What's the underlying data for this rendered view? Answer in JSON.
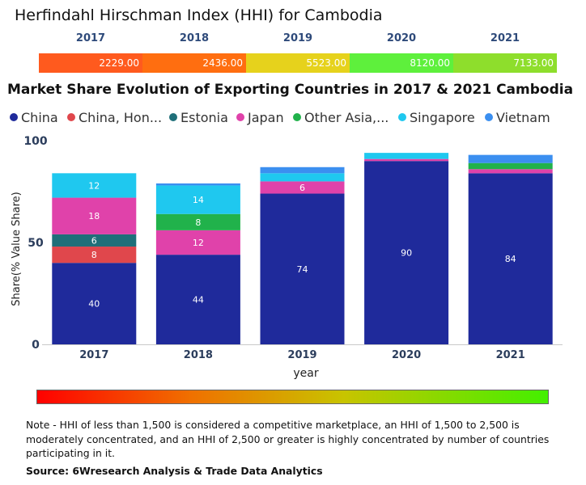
{
  "hhi": {
    "title": "Herfindahl Hirschman Index (HHI) for Cambodia",
    "entries": [
      {
        "year": "2017",
        "value": "2229.00",
        "color": "#ff5a1e"
      },
      {
        "year": "2018",
        "value": "2436.00",
        "color": "#ff6e10"
      },
      {
        "year": "2019",
        "value": "5523.00",
        "color": "#e6d21c"
      },
      {
        "year": "2020",
        "value": "8120.00",
        "color": "#5ef03c"
      },
      {
        "year": "2021",
        "value": "7133.00",
        "color": "#8ede2c"
      }
    ]
  },
  "chart_title": "Market Share Evolution of Exporting Countries in 2017 & 2021 Cambodia",
  "legend": [
    {
      "label": "China",
      "color": "#1f2a9b"
    },
    {
      "label": "China, Hon...",
      "color": "#e0474c"
    },
    {
      "label": "Estonia",
      "color": "#1f6f79"
    },
    {
      "label": "Japan",
      "color": "#e042aa"
    },
    {
      "label": "Other Asia,...",
      "color": "#21b24b"
    },
    {
      "label": "Singapore",
      "color": "#1fc8ef"
    },
    {
      "label": "Vietnam",
      "color": "#3b8ff0"
    }
  ],
  "chart_data": {
    "type": "bar",
    "stacked": true,
    "title": "Market Share Evolution of Exporting Countries in 2017 & 2021 Cambodia",
    "xlabel": "year",
    "ylabel": "Share(% Value Share)",
    "ylim": [
      0,
      100
    ],
    "yticks": [
      "0",
      "50",
      "100"
    ],
    "categories": [
      "2017",
      "2018",
      "2019",
      "2020",
      "2021"
    ],
    "series": [
      {
        "name": "China",
        "color": "#1f2a9b",
        "values": [
          40,
          44,
          74,
          90,
          84
        ],
        "labels": [
          "40",
          "44",
          "74",
          "90",
          "84"
        ]
      },
      {
        "name": "China, Hon...",
        "color": "#e0474c",
        "values": [
          8,
          0,
          0,
          0,
          0
        ],
        "labels": [
          "8",
          "",
          "",
          "",
          ""
        ]
      },
      {
        "name": "Estonia",
        "color": "#1f6f79",
        "values": [
          6,
          0,
          0,
          0,
          0
        ],
        "labels": [
          "6",
          "",
          "",
          "",
          ""
        ]
      },
      {
        "name": "Japan",
        "color": "#e042aa",
        "values": [
          18,
          12,
          6,
          1,
          2
        ],
        "labels": [
          "18",
          "12",
          "6",
          "",
          ""
        ]
      },
      {
        "name": "Other Asia,...",
        "color": "#21b24b",
        "values": [
          0,
          8,
          0,
          0,
          3
        ],
        "labels": [
          "",
          "8",
          "",
          "",
          ""
        ]
      },
      {
        "name": "Singapore",
        "color": "#1fc8ef",
        "values": [
          12,
          14,
          4,
          3,
          0
        ],
        "labels": [
          "12",
          "14",
          "",
          "",
          ""
        ]
      },
      {
        "name": "Vietnam",
        "color": "#3b8ff0",
        "values": [
          0,
          1,
          3,
          0,
          4
        ],
        "labels": [
          "",
          "",
          "",
          "",
          ""
        ]
      }
    ]
  },
  "note": "Note - HHI of less than 1,500 is considered a competitive marketplace, an HHI of 1,500 to 2,500 is moderately concentrated, and an HHI of 2,500 or greater is highly concentrated by number of countries participating in it.",
  "source": "Source: 6Wresearch Analysis & Trade Data Analytics"
}
